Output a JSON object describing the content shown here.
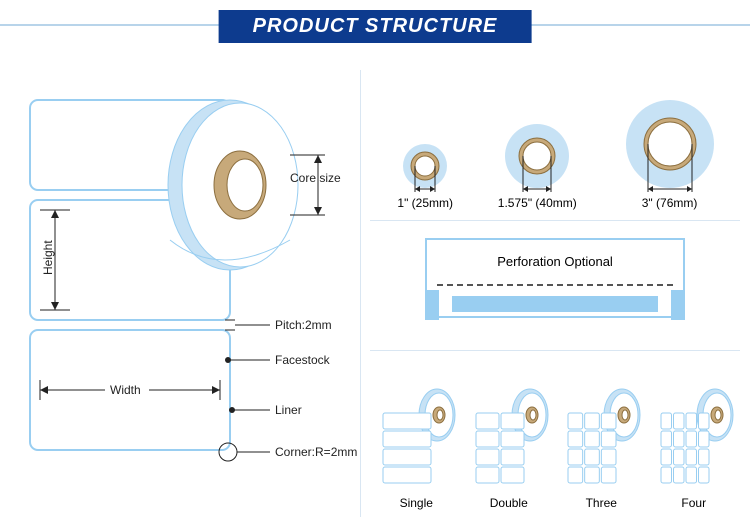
{
  "title": "PRODUCT STRUCTURE",
  "colors": {
    "banner_bg": "#0d3b8e",
    "banner_text": "#ffffff",
    "rule_light": "#b8d4ea",
    "divider": "#d9e6f2",
    "roll_light": "#c7e2f5",
    "roll_edge": "#99cef1",
    "core_fill": "#c7a97a",
    "core_stroke": "#8c6f3f",
    "line": "#222222",
    "text": "#222222"
  },
  "roll": {
    "labels": {
      "core_size": "Core size",
      "height": "Height",
      "width": "Width",
      "pitch": "Pitch:2mm",
      "facestock": "Facestock",
      "liner": "Liner",
      "corner": "Corner:R=2mm"
    }
  },
  "cores": [
    {
      "label": "1\" (25mm)",
      "outer_r": 22,
      "hole_r": 10
    },
    {
      "label": "1.575\" (40mm)",
      "outer_r": 32,
      "hole_r": 14
    },
    {
      "label": "3\" (76mm)",
      "outer_r": 44,
      "hole_r": 22
    }
  ],
  "perforation": {
    "text": "Perforation Optional"
  },
  "variants": [
    {
      "label": "Single",
      "cols": 1
    },
    {
      "label": "Double",
      "cols": 2
    },
    {
      "label": "Three",
      "cols": 3
    },
    {
      "label": "Four",
      "cols": 4
    }
  ]
}
